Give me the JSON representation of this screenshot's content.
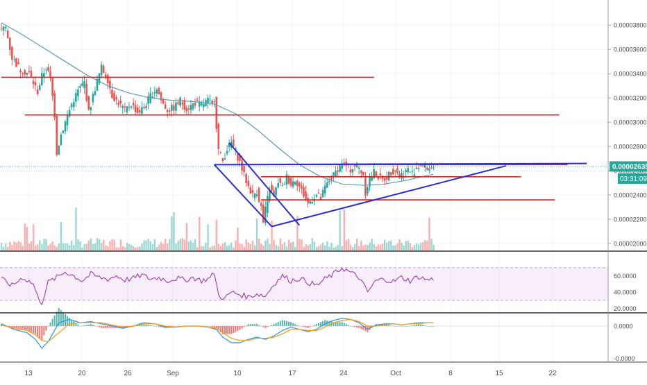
{
  "chart_data": {
    "type": "candlestick",
    "price_axis": {
      "ticks": [
        3.8e-05,
        3.6e-05,
        3.4e-05,
        3.2e-05,
        3e-05,
        2.8e-05,
        2.6e-05,
        2.4e-05,
        2.2e-05,
        2e-05
      ],
      "tick_labels": [
        "0.00003800",
        "0.00003600",
        "0.00003400",
        "0.00003200",
        "0.00003000",
        "0.00002800",
        "0.00002600",
        "0.00002400",
        "0.00002200",
        "0.00002000"
      ],
      "range": [
        1.96e-05,
        3.95e-05
      ],
      "last_price": 2.635e-05,
      "last_price_label": "0.00002635",
      "countdown_label": "03:31:09",
      "colors": {
        "up": "#26a69a",
        "down": "#ef5350",
        "last_price_tag": "#26a69a"
      }
    },
    "time_axis": {
      "labels": [
        "13",
        "20",
        "26",
        "Sep",
        "10",
        "17",
        "24",
        "Oct",
        "8",
        "15",
        "22"
      ]
    },
    "price_series": [
      [
        0,
        3.75e-05
      ],
      [
        3,
        3.78e-05
      ],
      [
        6,
        3.53e-05
      ],
      [
        10,
        3.43e-05
      ],
      [
        14,
        3.4e-05
      ],
      [
        18,
        3.25e-05
      ],
      [
        20,
        3.38e-05
      ],
      [
        22,
        3.45e-05
      ],
      [
        24,
        3.36e-05
      ],
      [
        26,
        3.06e-05
      ],
      [
        27,
        2.75e-05
      ],
      [
        29,
        2.9e-05
      ],
      [
        32,
        3.05e-05
      ],
      [
        34,
        3.15e-05
      ],
      [
        37,
        3.26e-05
      ],
      [
        40,
        3.33e-05
      ],
      [
        42,
        3.08e-05
      ],
      [
        45,
        3.28e-05
      ],
      [
        48,
        3.45e-05
      ],
      [
        51,
        3.35e-05
      ],
      [
        53,
        3.22e-05
      ],
      [
        56,
        3.16e-05
      ],
      [
        59,
        3.1e-05
      ],
      [
        62,
        3.15e-05
      ],
      [
        65,
        3.08e-05
      ],
      [
        68,
        3.12e-05
      ],
      [
        71,
        3.22e-05
      ],
      [
        74,
        3.28e-05
      ],
      [
        76,
        3.18e-05
      ],
      [
        79,
        3.1e-05
      ],
      [
        82,
        3.12e-05
      ],
      [
        85,
        3.18e-05
      ],
      [
        88,
        3.11e-05
      ],
      [
        92,
        3.16e-05
      ],
      [
        95,
        3.14e-05
      ],
      [
        98,
        3.18e-05
      ],
      [
        100,
        3.14e-05
      ],
      [
        101,
        3.2e-05
      ],
      [
        102,
        2.97e-05
      ],
      [
        103,
        2.77e-05
      ],
      [
        105,
        2.68e-05
      ],
      [
        107,
        2.78e-05
      ],
      [
        109,
        2.83e-05
      ],
      [
        111,
        2.76e-05
      ],
      [
        113,
        2.67e-05
      ],
      [
        115,
        2.56e-05
      ],
      [
        117,
        2.47e-05
      ],
      [
        119,
        2.4e-05
      ],
      [
        121,
        2.43e-05
      ],
      [
        123,
        2.3e-05
      ],
      [
        124,
        2.17e-05
      ],
      [
        125,
        2.28e-05
      ],
      [
        127,
        2.46e-05
      ],
      [
        129,
        2.38e-05
      ],
      [
        131,
        2.51e-05
      ],
      [
        133,
        2.46e-05
      ],
      [
        135,
        2.55e-05
      ],
      [
        137,
        2.49e-05
      ],
      [
        139,
        2.53e-05
      ],
      [
        141,
        2.47e-05
      ],
      [
        143,
        2.4e-05
      ],
      [
        145,
        2.33e-05
      ],
      [
        147,
        2.37e-05
      ],
      [
        149,
        2.4e-05
      ],
      [
        151,
        2.37e-05
      ],
      [
        153,
        2.46e-05
      ],
      [
        155,
        2.52e-05
      ],
      [
        157,
        2.56e-05
      ],
      [
        159,
        2.62e-05
      ],
      [
        161,
        2.66e-05
      ],
      [
        163,
        2.64e-05
      ],
      [
        165,
        2.61e-05
      ],
      [
        167,
        2.64e-05
      ],
      [
        169,
        2.62e-05
      ],
      [
        171,
        2.57e-05
      ],
      [
        172,
        2.42e-05
      ],
      [
        174,
        2.54e-05
      ],
      [
        176,
        2.59e-05
      ],
      [
        178,
        2.55e-05
      ],
      [
        180,
        2.52e-05
      ],
      [
        182,
        2.55e-05
      ],
      [
        184,
        2.59e-05
      ],
      [
        186,
        2.61e-05
      ],
      [
        188,
        2.56e-05
      ],
      [
        190,
        2.58e-05
      ],
      [
        192,
        2.61e-05
      ],
      [
        194,
        2.58e-05
      ],
      [
        196,
        2.62e-05
      ],
      [
        198,
        2.65e-05
      ],
      [
        200,
        2.63e-05
      ],
      [
        202,
        2.62e-05
      ],
      [
        203,
        2.635e-05
      ]
    ],
    "moving_average": [
      [
        0,
        3.82e-05
      ],
      [
        10,
        3.72e-05
      ],
      [
        20,
        3.61e-05
      ],
      [
        30,
        3.5e-05
      ],
      [
        40,
        3.39e-05
      ],
      [
        50,
        3.3e-05
      ],
      [
        60,
        3.24e-05
      ],
      [
        70,
        3.2e-05
      ],
      [
        80,
        3.18e-05
      ],
      [
        90,
        3.17e-05
      ],
      [
        100,
        3.15e-05
      ],
      [
        110,
        3.07e-05
      ],
      [
        120,
        2.94e-05
      ],
      [
        130,
        2.79e-05
      ],
      [
        140,
        2.65e-05
      ],
      [
        150,
        2.55e-05
      ],
      [
        160,
        2.49e-05
      ],
      [
        170,
        2.48e-05
      ],
      [
        180,
        2.49e-05
      ],
      [
        190,
        2.52e-05
      ],
      [
        200,
        2.56e-05
      ],
      [
        203,
        2.57e-05
      ]
    ],
    "drawings": {
      "horizontal_lines": [
        {
          "price": 3.37e-05,
          "x_start": 0,
          "x_end": 175
        },
        {
          "price": 3.06e-05,
          "x_start": 11,
          "x_end": 262
        },
        {
          "price": 2.65e-05,
          "x_start": 104,
          "x_end": 266
        },
        {
          "price": 2.55e-05,
          "x_start": 122,
          "x_end": 244
        },
        {
          "price": 2.36e-05,
          "x_start": 122,
          "x_end": 260
        }
      ],
      "trend_lines": [
        {
          "from": [
            100,
            2.65e-05
          ],
          "to": [
            275,
            2.66e-05
          ]
        },
        {
          "from": [
            100,
            2.65e-05
          ],
          "to": [
            127,
            2.14e-05
          ]
        },
        {
          "from": [
            107,
            2.83e-05
          ],
          "to": [
            140,
            2.15e-05
          ]
        },
        {
          "from": [
            127,
            2.14e-05
          ],
          "to": [
            237,
            2.64e-05
          ]
        }
      ],
      "colors": {
        "support_resistance": "#e02020",
        "trend": "#2b2bd4"
      }
    },
    "rsi": {
      "tick_labels": [
        "60.0000",
        "40.0000",
        "20.0000"
      ],
      "ticks": [
        60,
        40,
        20
      ],
      "range": [
        17,
        87
      ],
      "band": [
        30,
        70
      ],
      "color": "#9c27b0",
      "values": [
        [
          0,
          56
        ],
        [
          5,
          48
        ],
        [
          10,
          58
        ],
        [
          15,
          50
        ],
        [
          17,
          34
        ],
        [
          19,
          27
        ],
        [
          22,
          52
        ],
        [
          26,
          58
        ],
        [
          30,
          65
        ],
        [
          34,
          60
        ],
        [
          38,
          54
        ],
        [
          42,
          62
        ],
        [
          46,
          58
        ],
        [
          50,
          56
        ],
        [
          54,
          60
        ],
        [
          58,
          55
        ],
        [
          62,
          57
        ],
        [
          66,
          61
        ],
        [
          70,
          56
        ],
        [
          74,
          58
        ],
        [
          78,
          54
        ],
        [
          82,
          57
        ],
        [
          86,
          55
        ],
        [
          90,
          58
        ],
        [
          94,
          54
        ],
        [
          98,
          57
        ],
        [
          100,
          64
        ],
        [
          102,
          36
        ],
        [
          105,
          32
        ],
        [
          108,
          40
        ],
        [
          112,
          37
        ],
        [
          116,
          34
        ],
        [
          120,
          38
        ],
        [
          124,
          35
        ],
        [
          128,
          50
        ],
        [
          132,
          60
        ],
        [
          136,
          54
        ],
        [
          140,
          57
        ],
        [
          144,
          52
        ],
        [
          148,
          48
        ],
        [
          152,
          56
        ],
        [
          156,
          62
        ],
        [
          160,
          70
        ],
        [
          164,
          64
        ],
        [
          168,
          58
        ],
        [
          172,
          40
        ],
        [
          176,
          54
        ],
        [
          180,
          56
        ],
        [
          184,
          53
        ],
        [
          188,
          58
        ],
        [
          192,
          54
        ],
        [
          196,
          59
        ],
        [
          200,
          55
        ],
        [
          203,
          56
        ]
      ]
    },
    "macd": {
      "tick_labels": [
        "0.0000",
        "-0.0000"
      ],
      "colors": {
        "macd": "#2196f3",
        "signal": "#ff9800",
        "hist_up": "#26a69a",
        "hist_down": "#ef5350"
      },
      "macd_values": [
        [
          0,
          0.2
        ],
        [
          6,
          -0.3
        ],
        [
          12,
          -0.6
        ],
        [
          16,
          -1.2
        ],
        [
          19,
          -2.0
        ],
        [
          22,
          -1.4
        ],
        [
          27,
          0.3
        ],
        [
          32,
          0.6
        ],
        [
          37,
          0.3
        ],
        [
          42,
          0.4
        ],
        [
          47,
          0.2
        ],
        [
          52,
          0.0
        ],
        [
          57,
          -0.2
        ],
        [
          62,
          0.0
        ],
        [
          67,
          0.3
        ],
        [
          72,
          0.2
        ],
        [
          77,
          -0.1
        ],
        [
          82,
          -0.1
        ],
        [
          87,
          0.0
        ],
        [
          92,
          0.0
        ],
        [
          97,
          -0.1
        ],
        [
          101,
          -0.3
        ],
        [
          104,
          -1.0
        ],
        [
          108,
          -1.5
        ],
        [
          112,
          -1.5
        ],
        [
          116,
          -1.2
        ],
        [
          120,
          -1.0
        ],
        [
          124,
          -1.2
        ],
        [
          128,
          -0.9
        ],
        [
          132,
          -0.4
        ],
        [
          136,
          -0.1
        ],
        [
          140,
          -0.3
        ],
        [
          144,
          -0.5
        ],
        [
          148,
          -0.3
        ],
        [
          152,
          0.2
        ],
        [
          156,
          0.5
        ],
        [
          160,
          0.7
        ],
        [
          164,
          0.6
        ],
        [
          168,
          0.3
        ],
        [
          172,
          -0.3
        ],
        [
          176,
          0.1
        ],
        [
          180,
          0.2
        ],
        [
          184,
          0.2
        ],
        [
          188,
          0.1
        ],
        [
          192,
          0.2
        ],
        [
          196,
          0.3
        ],
        [
          200,
          0.3
        ],
        [
          203,
          0.3
        ]
      ],
      "signal_values": [
        [
          0,
          0.1
        ],
        [
          6,
          -0.2
        ],
        [
          12,
          -0.4
        ],
        [
          16,
          -0.8
        ],
        [
          19,
          -1.3
        ],
        [
          22,
          -1.4
        ],
        [
          27,
          -0.6
        ],
        [
          32,
          0.2
        ],
        [
          37,
          0.3
        ],
        [
          42,
          0.3
        ],
        [
          47,
          0.3
        ],
        [
          52,
          0.1
        ],
        [
          57,
          -0.1
        ],
        [
          62,
          0.0
        ],
        [
          67,
          0.2
        ],
        [
          72,
          0.2
        ],
        [
          77,
          0.0
        ],
        [
          82,
          -0.1
        ],
        [
          87,
          0.0
        ],
        [
          92,
          0.0
        ],
        [
          97,
          -0.1
        ],
        [
          101,
          -0.2
        ],
        [
          104,
          -0.6
        ],
        [
          108,
          -1.1
        ],
        [
          112,
          -1.3
        ],
        [
          116,
          -1.3
        ],
        [
          120,
          -1.1
        ],
        [
          124,
          -1.1
        ],
        [
          128,
          -1.0
        ],
        [
          132,
          -0.7
        ],
        [
          136,
          -0.3
        ],
        [
          140,
          -0.3
        ],
        [
          144,
          -0.4
        ],
        [
          148,
          -0.4
        ],
        [
          152,
          -0.1
        ],
        [
          156,
          0.3
        ],
        [
          160,
          0.5
        ],
        [
          164,
          0.6
        ],
        [
          168,
          0.4
        ],
        [
          172,
          0.0
        ],
        [
          176,
          0.0
        ],
        [
          180,
          0.1
        ],
        [
          184,
          0.2
        ],
        [
          188,
          0.1
        ],
        [
          192,
          0.2
        ],
        [
          196,
          0.2
        ],
        [
          200,
          0.3
        ],
        [
          203,
          0.3
        ]
      ]
    }
  }
}
